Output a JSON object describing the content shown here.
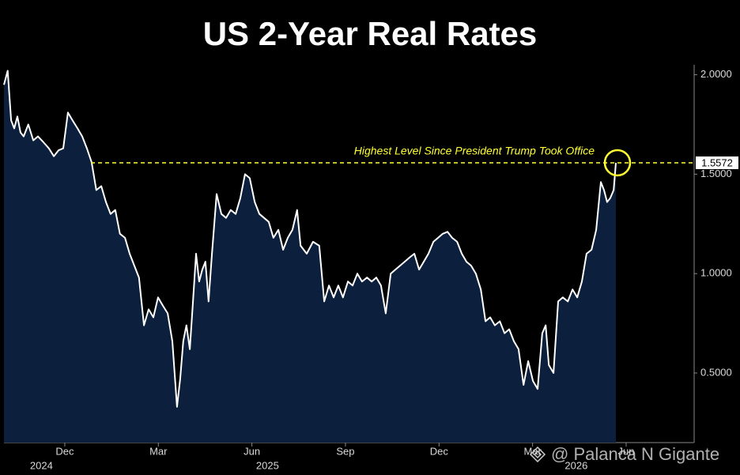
{
  "chart_data": {
    "type": "area",
    "title": "US 2-Year Real Rates",
    "x": [
      -1.95,
      -1.83,
      -1.72,
      -1.62,
      -1.52,
      -1.42,
      -1.32,
      -1.17,
      -1.01,
      -0.86,
      -0.68,
      -0.51,
      -0.35,
      -0.2,
      -0.05,
      0.1,
      0.25,
      0.41,
      0.56,
      0.71,
      0.86,
      1.01,
      1.17,
      1.32,
      1.47,
      1.62,
      1.77,
      1.93,
      2.08,
      2.23,
      2.38,
      2.54,
      2.69,
      2.84,
      2.99,
      3.14,
      3.3,
      3.45,
      3.6,
      3.7,
      3.8,
      3.9,
      4.01,
      4.11,
      4.21,
      4.31,
      4.41,
      4.51,
      4.61,
      4.72,
      4.87,
      5.02,
      5.17,
      5.32,
      5.48,
      5.63,
      5.78,
      5.93,
      6.09,
      6.24,
      6.39,
      6.54,
      6.69,
      6.85,
      7.0,
      7.15,
      7.3,
      7.45,
      7.56,
      7.76,
      7.96,
      8.16,
      8.32,
      8.47,
      8.62,
      8.77,
      8.92,
      9.08,
      9.23,
      9.38,
      9.53,
      9.69,
      9.84,
      9.99,
      10.14,
      10.29,
      10.45,
      10.6,
      10.75,
      10.9,
      11.05,
      11.21,
      11.36,
      11.51,
      11.66,
      11.82,
      11.97,
      12.12,
      12.27,
      12.42,
      12.58,
      12.73,
      12.88,
      13.03,
      13.18,
      13.34,
      13.49,
      13.64,
      13.79,
      13.95,
      14.1,
      14.25,
      14.4,
      14.55,
      14.71,
      14.86,
      15.01,
      15.16,
      15.31,
      15.42,
      15.52,
      15.67,
      15.82,
      15.97,
      16.13,
      16.28,
      16.43,
      16.58,
      16.73,
      16.89,
      17.04,
      17.19,
      17.29,
      17.39,
      17.49,
      17.6,
      17.67
    ],
    "values": [
      1.95,
      2.02,
      1.77,
      1.73,
      1.79,
      1.71,
      1.69,
      1.75,
      1.67,
      1.69,
      1.66,
      1.63,
      1.59,
      1.62,
      1.63,
      1.81,
      1.77,
      1.73,
      1.69,
      1.63,
      1.56,
      1.42,
      1.44,
      1.36,
      1.3,
      1.32,
      1.2,
      1.18,
      1.1,
      1.04,
      0.98,
      0.74,
      0.82,
      0.78,
      0.88,
      0.84,
      0.8,
      0.66,
      0.33,
      0.47,
      0.66,
      0.74,
      0.62,
      0.86,
      1.1,
      0.96,
      1.02,
      1.06,
      0.86,
      1.1,
      1.4,
      1.3,
      1.28,
      1.32,
      1.3,
      1.38,
      1.5,
      1.48,
      1.36,
      1.3,
      1.28,
      1.26,
      1.18,
      1.22,
      1.12,
      1.18,
      1.22,
      1.32,
      1.14,
      1.1,
      1.16,
      1.14,
      0.86,
      0.94,
      0.88,
      0.94,
      0.88,
      0.96,
      0.94,
      1.0,
      0.96,
      0.98,
      0.96,
      0.98,
      0.94,
      0.8,
      1.0,
      1.02,
      1.04,
      1.06,
      1.08,
      1.1,
      1.02,
      1.06,
      1.1,
      1.16,
      1.18,
      1.2,
      1.21,
      1.18,
      1.16,
      1.1,
      1.06,
      1.04,
      1.0,
      0.92,
      0.76,
      0.78,
      0.74,
      0.76,
      0.7,
      0.72,
      0.66,
      0.62,
      0.44,
      0.56,
      0.46,
      0.42,
      0.7,
      0.74,
      0.54,
      0.5,
      0.86,
      0.88,
      0.86,
      0.92,
      0.88,
      0.96,
      1.1,
      1.12,
      1.22,
      1.46,
      1.42,
      1.36,
      1.38,
      1.42,
      1.5572
    ],
    "fill_color": "#0c203d",
    "line_color": "#ffffff",
    "xlim": [
      -1.95,
      20.18
    ],
    "xticks": [
      {
        "value": 0,
        "label": "Dec"
      },
      {
        "value": 3,
        "label": "Mar"
      },
      {
        "value": 6,
        "label": "Jun"
      },
      {
        "value": 9,
        "label": "Sep"
      },
      {
        "value": 12,
        "label": "Dec"
      },
      {
        "value": 15,
        "label": "Mar"
      },
      {
        "value": 18,
        "label": "Jun"
      }
    ],
    "xticks_secondary": [
      {
        "value": -0.75,
        "label": "2024"
      },
      {
        "value": 6.5,
        "label": "2025"
      },
      {
        "value": 16.4,
        "label": "2026"
      }
    ],
    "ylim": [
      0.15,
      2.05
    ],
    "yticks": [
      {
        "value": 0.5,
        "label": "0.5000"
      },
      {
        "value": 1,
        "label": "1.0000"
      },
      {
        "value": 1.5,
        "label": "1.5000"
      },
      {
        "value": 2,
        "label": "2.0000"
      }
    ],
    "reference_line": {
      "value": 1.5572,
      "label": "Highest Level Since President Trump Took Office",
      "color": "#ffff33"
    },
    "watermark": "@ Palanca N Gigante"
  }
}
